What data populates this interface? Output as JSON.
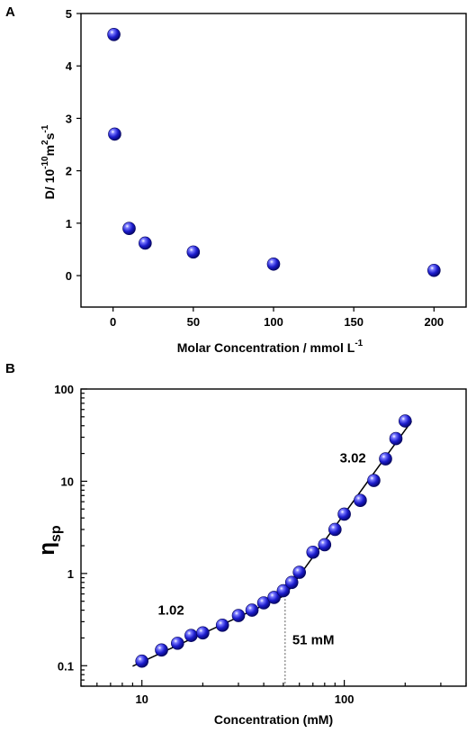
{
  "chart_data": [
    {
      "panel": "A",
      "type": "scatter",
      "xlim": [
        -20,
        220
      ],
      "ylim": [
        -0.6,
        5
      ],
      "x_ticks": [
        0,
        50,
        100,
        150,
        200
      ],
      "y_ticks": [
        0,
        1,
        2,
        3,
        4,
        5
      ],
      "xlabel_main": "Molar Concentration / mmol L",
      "xlabel_sup": "-1",
      "ylabel_parts": {
        "p1": "D/ 10",
        "p2": "-10",
        "p3": "m",
        "p4": "2",
        "p5": "s",
        "p6": "-1"
      },
      "points": [
        {
          "x": 0.5,
          "y": 4.6
        },
        {
          "x": 1,
          "y": 2.7
        },
        {
          "x": 10,
          "y": 0.9
        },
        {
          "x": 20,
          "y": 0.62
        },
        {
          "x": 50,
          "y": 0.45
        },
        {
          "x": 100,
          "y": 0.22
        },
        {
          "x": 200,
          "y": 0.1
        }
      ],
      "marker_color": "#2020d0"
    },
    {
      "panel": "B",
      "type": "scatter",
      "xscale": "log",
      "yscale": "log",
      "xlim": [
        5,
        400
      ],
      "ylim": [
        0.06,
        100
      ],
      "x_ticks": [
        10,
        100
      ],
      "y_ticks": [
        0.1,
        1,
        10,
        100
      ],
      "x_tick_labels": [
        "10",
        "100"
      ],
      "y_tick_labels": [
        "0.1",
        "1",
        "10",
        "100"
      ],
      "xlabel": "Concentration (mM)",
      "ylabel_main": "η",
      "ylabel_sub": "sp",
      "points": [
        {
          "x": 10,
          "y": 0.112
        },
        {
          "x": 12.5,
          "y": 0.148
        },
        {
          "x": 15,
          "y": 0.175
        },
        {
          "x": 17.5,
          "y": 0.213
        },
        {
          "x": 20,
          "y": 0.227
        },
        {
          "x": 25,
          "y": 0.275
        },
        {
          "x": 30,
          "y": 0.35
        },
        {
          "x": 35,
          "y": 0.4
        },
        {
          "x": 40,
          "y": 0.48
        },
        {
          "x": 45,
          "y": 0.55
        },
        {
          "x": 50,
          "y": 0.65
        },
        {
          "x": 55,
          "y": 0.8
        },
        {
          "x": 60,
          "y": 1.03
        },
        {
          "x": 70,
          "y": 1.7
        },
        {
          "x": 80,
          "y": 2.05
        },
        {
          "x": 90,
          "y": 3.0
        },
        {
          "x": 100,
          "y": 4.4
        },
        {
          "x": 120,
          "y": 6.2
        },
        {
          "x": 140,
          "y": 10.2
        },
        {
          "x": 160,
          "y": 17.5
        },
        {
          "x": 180,
          "y": 29
        },
        {
          "x": 200,
          "y": 45
        }
      ],
      "fit_lines": [
        {
          "label": "1.02",
          "slope": 1.02,
          "x_range": [
            9,
            51
          ]
        },
        {
          "label": "3.02",
          "slope": 3.02,
          "x_range": [
            51,
            215
          ]
        }
      ],
      "critical_concentration": {
        "x": 51,
        "label": "51 mM"
      },
      "marker_color": "#2020d0"
    }
  ],
  "panel_letters": {
    "a": "A",
    "b": "B"
  }
}
